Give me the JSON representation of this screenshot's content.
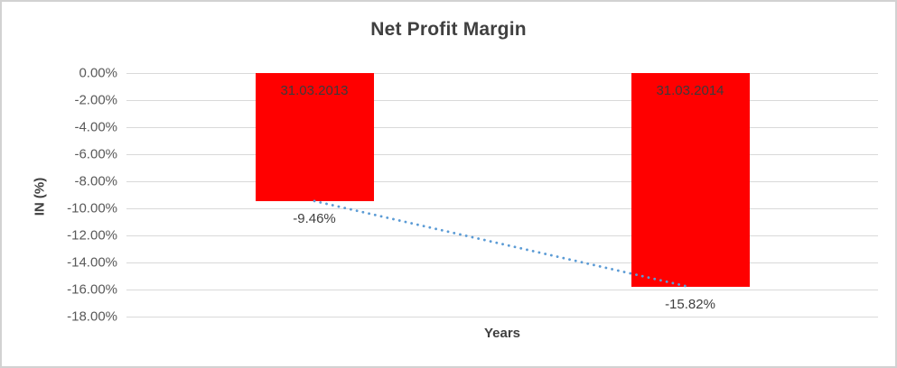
{
  "chart_data": {
    "type": "bar",
    "title": "Net Profit Margin",
    "xlabel": "Years",
    "ylabel": "IN (%)",
    "categories": [
      "31.03.2013",
      "31.03.2014"
    ],
    "values": [
      -9.46,
      -15.82
    ],
    "value_labels": [
      "-9.46%",
      "-15.82%"
    ],
    "ylim": [
      -18,
      0
    ],
    "ytick_step": 2,
    "ytick_labels": [
      "0.00%",
      "-2.00%",
      "-4.00%",
      "-6.00%",
      "-8.00%",
      "-10.00%",
      "-12.00%",
      "-14.00%",
      "-16.00%",
      "-18.00%"
    ],
    "grid": true,
    "legend": "none",
    "colors": {
      "bar": "#ff0000",
      "title_text": "#404040",
      "tick_text": "#595959",
      "category_label_text": "#3b3b3b",
      "gridline": "#d9d9d9",
      "trendline": "#5b9bd5",
      "chart_border": "#d2d2d2",
      "background": "#ffffff"
    },
    "trendline": {
      "style": "dotted",
      "from_value": -9.46,
      "to_value": -15.82
    }
  }
}
